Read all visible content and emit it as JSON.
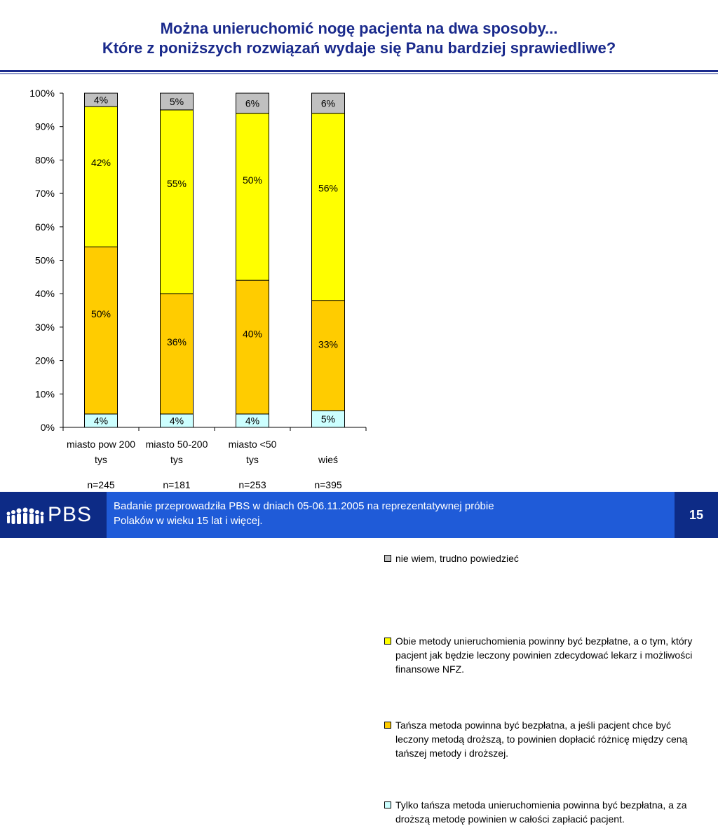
{
  "header": {
    "title_line1": "Można unieruchomić nogę pacjenta na dwa sposoby...",
    "title_line2": "Które z poniższych rozwiązań wydaje się Panu bardziej sprawiedliwe?"
  },
  "colors": {
    "title": "#1a2a8c",
    "rule_dark": "#1a2a8c",
    "rule_light": "#8a94c8",
    "footer_dark": "#0d2b86",
    "footer_light": "#1f5bd8"
  },
  "chart_data": {
    "type": "bar",
    "stacked": true,
    "categories": [
      "miasto pow 200 tys",
      "miasto 50-200 tys",
      "miasto <50 tys",
      "wieś"
    ],
    "sample_sizes": [
      "n=245",
      "n=181",
      "n=253",
      "n=395"
    ],
    "series": [
      {
        "name": "Tylko tańsza metoda unieruchomienia powinna być bezpłatna, a za droższą metodę powinien w całości zapłacić pacjent.",
        "values": [
          4,
          4,
          4,
          5
        ],
        "color": "#ccffff"
      },
      {
        "name": "Tańsza metoda powinna być bezpłatna, a jeśli pacjent chce być leczony metodą droższą, to powinien dopłacić różnicę między ceną tańszej metody i droższej.",
        "values": [
          50,
          36,
          40,
          33
        ],
        "color": "#ffcc00"
      },
      {
        "name": "Obie metody unieruchomienia powinny być bezpłatne, a o tym, który pacjent jak będzie leczony powinien zdecydować lekarz i możliwości finansowe NFZ.",
        "values": [
          42,
          55,
          50,
          56
        ],
        "color": "#ffff00"
      },
      {
        "name": "nie wiem, trudno powiedzieć",
        "values": [
          4,
          5,
          6,
          6
        ],
        "color": "#c0c0c0"
      }
    ],
    "data_labels": [
      [
        "4%",
        "50%",
        "42%",
        "4%"
      ],
      [
        "4%",
        "36%",
        "55%",
        "5%"
      ],
      [
        "4%",
        "40%",
        "50%",
        "6%"
      ],
      [
        "5%",
        "33%",
        "56%",
        "6%"
      ]
    ],
    "y_ticks": [
      "0%",
      "10%",
      "20%",
      "30%",
      "40%",
      "50%",
      "60%",
      "70%",
      "80%",
      "90%",
      "100%"
    ],
    "ylim": [
      0,
      100
    ],
    "legend_position": "right",
    "grid": false
  },
  "footer": {
    "logo_text": "PBS",
    "note_line1": "Badanie przeprowadziła PBS w dniach 05-06.11.2005 na reprezentatywnej próbie",
    "note_line2": "Polaków w wieku 15 lat i więcej.",
    "page_number": "15"
  }
}
